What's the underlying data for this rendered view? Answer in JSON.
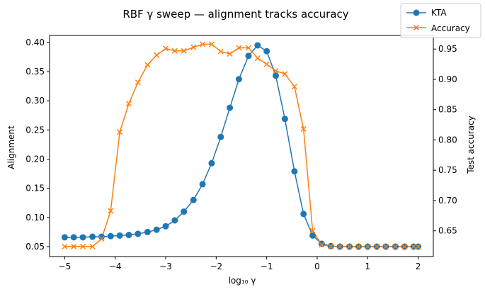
{
  "chart_data": {
    "type": "line",
    "title": "RBF γ sweep — alignment tracks accuracy",
    "xlabel": "log₁₀ γ",
    "ylabel": "Alignment",
    "y2label": "Test accuracy",
    "xlim": [
      -5.3,
      2.3
    ],
    "ylim": [
      0.033,
      0.412
    ],
    "y2lim": [
      0.6075,
      0.9725
    ],
    "xticks": [
      -5,
      -4,
      -3,
      -2,
      -1,
      0,
      1,
      2
    ],
    "yticks": [
      0.05,
      0.1,
      0.15,
      0.2,
      0.25,
      0.3,
      0.35,
      0.4
    ],
    "y2ticks": [
      0.65,
      0.7,
      0.75,
      0.8,
      0.85,
      0.9,
      0.95
    ],
    "grid": false,
    "legend_position": "top-right",
    "x": [
      -5.0,
      -4.82,
      -4.64,
      -4.45,
      -4.27,
      -4.09,
      -3.91,
      -3.73,
      -3.55,
      -3.36,
      -3.18,
      -3.0,
      -2.82,
      -2.64,
      -2.45,
      -2.27,
      -2.09,
      -1.91,
      -1.73,
      -1.55,
      -1.36,
      -1.18,
      -1.0,
      -0.82,
      -0.64,
      -0.45,
      -0.27,
      -0.09,
      0.09,
      0.27,
      0.45,
      0.64,
      0.82,
      1.0,
      1.18,
      1.36,
      1.55,
      1.73,
      1.91,
      2.0
    ],
    "series": [
      {
        "name": "KTA",
        "axis": "left",
        "color": "#1f77b4",
        "marker": "circle",
        "values": [
          0.066,
          0.066,
          0.066,
          0.067,
          0.067,
          0.068,
          0.069,
          0.07,
          0.072,
          0.075,
          0.079,
          0.085,
          0.095,
          0.11,
          0.13,
          0.157,
          0.193,
          0.238,
          0.288,
          0.337,
          0.377,
          0.395,
          0.385,
          0.343,
          0.269,
          0.179,
          0.106,
          0.069,
          0.055,
          0.051,
          0.05,
          0.05,
          0.05,
          0.05,
          0.05,
          0.05,
          0.05,
          0.05,
          0.05,
          0.05
        ]
      },
      {
        "name": "Accuracy",
        "axis": "right",
        "color": "#ff7f0e",
        "marker": "x",
        "values": [
          0.624,
          0.624,
          0.624,
          0.624,
          0.637,
          0.683,
          0.813,
          0.86,
          0.895,
          0.924,
          0.94,
          0.951,
          0.947,
          0.947,
          0.953,
          0.958,
          0.958,
          0.946,
          0.942,
          0.952,
          0.952,
          0.935,
          0.925,
          0.914,
          0.909,
          0.888,
          0.818,
          0.65,
          0.627,
          0.624,
          0.624,
          0.624,
          0.624,
          0.624,
          0.624,
          0.624,
          0.624,
          0.624,
          0.624,
          0.624
        ]
      }
    ]
  }
}
